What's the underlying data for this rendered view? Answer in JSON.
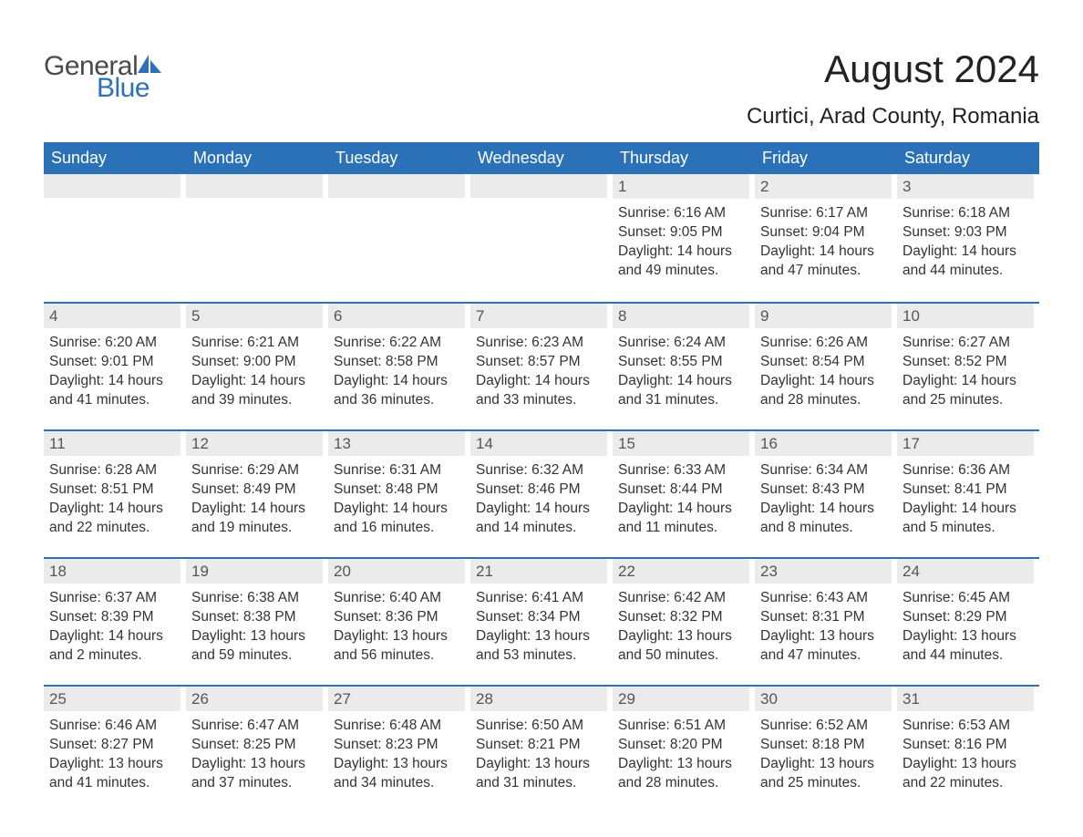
{
  "logo": {
    "word1": "General",
    "word2": "Blue",
    "text_color": "#4a4a4a",
    "accent_color": "#2a71b8"
  },
  "title": "August 2024",
  "location": "Curtici, Arad County, Romania",
  "colors": {
    "header_bg": "#2a71b8",
    "header_text": "#ffffff",
    "daynum_bg": "#ebebeb",
    "daynum_text": "#555555",
    "body_text": "#333333",
    "week_border": "#2a71b8",
    "page_bg": "#ffffff"
  },
  "typography": {
    "title_fontsize": 42,
    "location_fontsize": 24,
    "header_fontsize": 18,
    "daynum_fontsize": 17,
    "body_fontsize": 15.5
  },
  "calendar": {
    "day_names": [
      "Sunday",
      "Monday",
      "Tuesday",
      "Wednesday",
      "Thursday",
      "Friday",
      "Saturday"
    ],
    "weeks": [
      [
        {
          "num": "",
          "sunrise": "",
          "sunset": "",
          "daylight": ""
        },
        {
          "num": "",
          "sunrise": "",
          "sunset": "",
          "daylight": ""
        },
        {
          "num": "",
          "sunrise": "",
          "sunset": "",
          "daylight": ""
        },
        {
          "num": "",
          "sunrise": "",
          "sunset": "",
          "daylight": ""
        },
        {
          "num": "1",
          "sunrise": "Sunrise: 6:16 AM",
          "sunset": "Sunset: 9:05 PM",
          "daylight": "Daylight: 14 hours and 49 minutes."
        },
        {
          "num": "2",
          "sunrise": "Sunrise: 6:17 AM",
          "sunset": "Sunset: 9:04 PM",
          "daylight": "Daylight: 14 hours and 47 minutes."
        },
        {
          "num": "3",
          "sunrise": "Sunrise: 6:18 AM",
          "sunset": "Sunset: 9:03 PM",
          "daylight": "Daylight: 14 hours and 44 minutes."
        }
      ],
      [
        {
          "num": "4",
          "sunrise": "Sunrise: 6:20 AM",
          "sunset": "Sunset: 9:01 PM",
          "daylight": "Daylight: 14 hours and 41 minutes."
        },
        {
          "num": "5",
          "sunrise": "Sunrise: 6:21 AM",
          "sunset": "Sunset: 9:00 PM",
          "daylight": "Daylight: 14 hours and 39 minutes."
        },
        {
          "num": "6",
          "sunrise": "Sunrise: 6:22 AM",
          "sunset": "Sunset: 8:58 PM",
          "daylight": "Daylight: 14 hours and 36 minutes."
        },
        {
          "num": "7",
          "sunrise": "Sunrise: 6:23 AM",
          "sunset": "Sunset: 8:57 PM",
          "daylight": "Daylight: 14 hours and 33 minutes."
        },
        {
          "num": "8",
          "sunrise": "Sunrise: 6:24 AM",
          "sunset": "Sunset: 8:55 PM",
          "daylight": "Daylight: 14 hours and 31 minutes."
        },
        {
          "num": "9",
          "sunrise": "Sunrise: 6:26 AM",
          "sunset": "Sunset: 8:54 PM",
          "daylight": "Daylight: 14 hours and 28 minutes."
        },
        {
          "num": "10",
          "sunrise": "Sunrise: 6:27 AM",
          "sunset": "Sunset: 8:52 PM",
          "daylight": "Daylight: 14 hours and 25 minutes."
        }
      ],
      [
        {
          "num": "11",
          "sunrise": "Sunrise: 6:28 AM",
          "sunset": "Sunset: 8:51 PM",
          "daylight": "Daylight: 14 hours and 22 minutes."
        },
        {
          "num": "12",
          "sunrise": "Sunrise: 6:29 AM",
          "sunset": "Sunset: 8:49 PM",
          "daylight": "Daylight: 14 hours and 19 minutes."
        },
        {
          "num": "13",
          "sunrise": "Sunrise: 6:31 AM",
          "sunset": "Sunset: 8:48 PM",
          "daylight": "Daylight: 14 hours and 16 minutes."
        },
        {
          "num": "14",
          "sunrise": "Sunrise: 6:32 AM",
          "sunset": "Sunset: 8:46 PM",
          "daylight": "Daylight: 14 hours and 14 minutes."
        },
        {
          "num": "15",
          "sunrise": "Sunrise: 6:33 AM",
          "sunset": "Sunset: 8:44 PM",
          "daylight": "Daylight: 14 hours and 11 minutes."
        },
        {
          "num": "16",
          "sunrise": "Sunrise: 6:34 AM",
          "sunset": "Sunset: 8:43 PM",
          "daylight": "Daylight: 14 hours and 8 minutes."
        },
        {
          "num": "17",
          "sunrise": "Sunrise: 6:36 AM",
          "sunset": "Sunset: 8:41 PM",
          "daylight": "Daylight: 14 hours and 5 minutes."
        }
      ],
      [
        {
          "num": "18",
          "sunrise": "Sunrise: 6:37 AM",
          "sunset": "Sunset: 8:39 PM",
          "daylight": "Daylight: 14 hours and 2 minutes."
        },
        {
          "num": "19",
          "sunrise": "Sunrise: 6:38 AM",
          "sunset": "Sunset: 8:38 PM",
          "daylight": "Daylight: 13 hours and 59 minutes."
        },
        {
          "num": "20",
          "sunrise": "Sunrise: 6:40 AM",
          "sunset": "Sunset: 8:36 PM",
          "daylight": "Daylight: 13 hours and 56 minutes."
        },
        {
          "num": "21",
          "sunrise": "Sunrise: 6:41 AM",
          "sunset": "Sunset: 8:34 PM",
          "daylight": "Daylight: 13 hours and 53 minutes."
        },
        {
          "num": "22",
          "sunrise": "Sunrise: 6:42 AM",
          "sunset": "Sunset: 8:32 PM",
          "daylight": "Daylight: 13 hours and 50 minutes."
        },
        {
          "num": "23",
          "sunrise": "Sunrise: 6:43 AM",
          "sunset": "Sunset: 8:31 PM",
          "daylight": "Daylight: 13 hours and 47 minutes."
        },
        {
          "num": "24",
          "sunrise": "Sunrise: 6:45 AM",
          "sunset": "Sunset: 8:29 PM",
          "daylight": "Daylight: 13 hours and 44 minutes."
        }
      ],
      [
        {
          "num": "25",
          "sunrise": "Sunrise: 6:46 AM",
          "sunset": "Sunset: 8:27 PM",
          "daylight": "Daylight: 13 hours and 41 minutes."
        },
        {
          "num": "26",
          "sunrise": "Sunrise: 6:47 AM",
          "sunset": "Sunset: 8:25 PM",
          "daylight": "Daylight: 13 hours and 37 minutes."
        },
        {
          "num": "27",
          "sunrise": "Sunrise: 6:48 AM",
          "sunset": "Sunset: 8:23 PM",
          "daylight": "Daylight: 13 hours and 34 minutes."
        },
        {
          "num": "28",
          "sunrise": "Sunrise: 6:50 AM",
          "sunset": "Sunset: 8:21 PM",
          "daylight": "Daylight: 13 hours and 31 minutes."
        },
        {
          "num": "29",
          "sunrise": "Sunrise: 6:51 AM",
          "sunset": "Sunset: 8:20 PM",
          "daylight": "Daylight: 13 hours and 28 minutes."
        },
        {
          "num": "30",
          "sunrise": "Sunrise: 6:52 AM",
          "sunset": "Sunset: 8:18 PM",
          "daylight": "Daylight: 13 hours and 25 minutes."
        },
        {
          "num": "31",
          "sunrise": "Sunrise: 6:53 AM",
          "sunset": "Sunset: 8:16 PM",
          "daylight": "Daylight: 13 hours and 22 minutes."
        }
      ]
    ]
  }
}
